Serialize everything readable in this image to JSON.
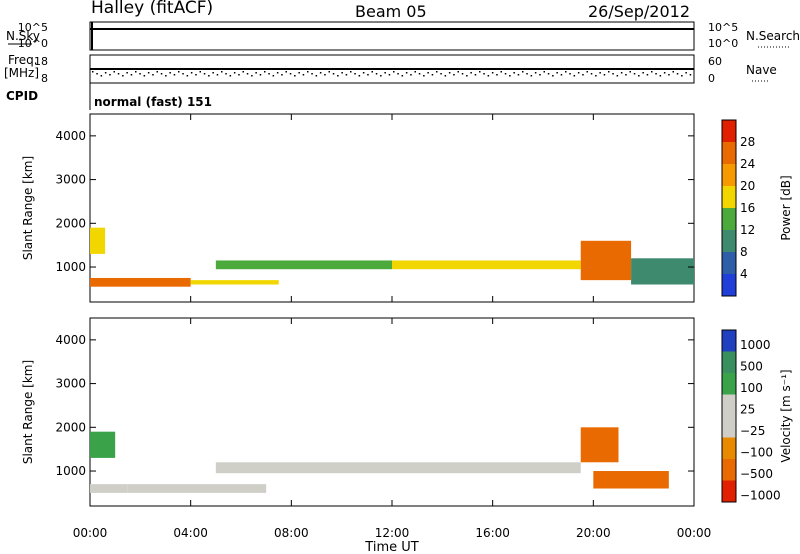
{
  "header": {
    "station": "Halley (fitACF)",
    "beam": "Beam 05",
    "date": "26/Sep/2012"
  },
  "noise_panel": {
    "left_label": "N.Sky",
    "right_label": "N.Search",
    "left_ticks": [
      "10^5",
      "10^0"
    ],
    "right_ticks": [
      "10^5",
      "10^0"
    ]
  },
  "freq_panel": {
    "left_label_top": "Freq.",
    "left_label_bottom": "[MHz]",
    "right_label": "Nave",
    "left_ticks": [
      "18",
      "8"
    ],
    "right_ticks": [
      "60",
      "0"
    ]
  },
  "cpid": {
    "label": "CPID",
    "value": "normal (fast) 151"
  },
  "chart_data": [
    {
      "type": "heatmap",
      "name": "power",
      "ylabel": "Slant Range [km]",
      "y_ticks": [
        "1000",
        "2000",
        "3000",
        "4000"
      ],
      "ylim": [
        200,
        4500
      ],
      "colorbar_label": "Power [dB]",
      "colorbar_ticks": [
        "4",
        "8",
        "12",
        "16",
        "20",
        "24",
        "28"
      ],
      "colors": [
        "#1f3fd8",
        "#2e5ea8",
        "#3e8a6e",
        "#4caa3c",
        "#f2d600",
        "#f59a00",
        "#e96a00",
        "#e02000"
      ],
      "bands": [
        {
          "x": [
            0,
            4
          ],
          "range": [
            550,
            750
          ],
          "value": 24
        },
        {
          "x": [
            0,
            0.6
          ],
          "range": [
            1300,
            1900
          ],
          "value": 18
        },
        {
          "x": [
            4,
            7.5
          ],
          "range": [
            600,
            700
          ],
          "value": 18
        },
        {
          "x": [
            5,
            12
          ],
          "range": [
            950,
            1150
          ],
          "value": 12
        },
        {
          "x": [
            12,
            19.5
          ],
          "range": [
            950,
            1150
          ],
          "value": 18
        },
        {
          "x": [
            19.5,
            21.5
          ],
          "range": [
            700,
            1600
          ],
          "value": 24
        },
        {
          "x": [
            21.5,
            24
          ],
          "range": [
            600,
            1200
          ],
          "value": 8
        }
      ]
    },
    {
      "type": "heatmap",
      "name": "velocity",
      "ylabel": "Slant Range [km]",
      "y_ticks": [
        "1000",
        "2000",
        "3000",
        "4000"
      ],
      "ylim": [
        200,
        4500
      ],
      "colorbar_label": "Velocity [m s⁻¹]",
      "colorbar_ticks": [
        "1000",
        "500",
        "100",
        "25",
        "−25",
        "−100",
        "−500",
        "−1000"
      ],
      "colors": [
        "#2040c0",
        "#3a8f5e",
        "#3aa34a",
        "#cfcfc8",
        "#cfcfc8",
        "#e88a00",
        "#e86a00",
        "#e02000"
      ],
      "bands": [
        {
          "x": [
            0,
            1.5
          ],
          "range": [
            500,
            700
          ],
          "value": 0
        },
        {
          "x": [
            0,
            1
          ],
          "range": [
            1300,
            1900
          ],
          "value": 200
        },
        {
          "x": [
            1.5,
            7
          ],
          "range": [
            500,
            700
          ],
          "value": 0
        },
        {
          "x": [
            5,
            19.5
          ],
          "range": [
            950,
            1200
          ],
          "value": 0
        },
        {
          "x": [
            19.5,
            21
          ],
          "range": [
            1200,
            2000
          ],
          "value": -300
        },
        {
          "x": [
            20,
            23
          ],
          "range": [
            600,
            1000
          ],
          "value": -400
        }
      ]
    }
  ],
  "x_axis": {
    "ticks": [
      "00:00",
      "04:00",
      "08:00",
      "12:00",
      "16:00",
      "20:00",
      "00:00"
    ],
    "label": "Time UT"
  }
}
